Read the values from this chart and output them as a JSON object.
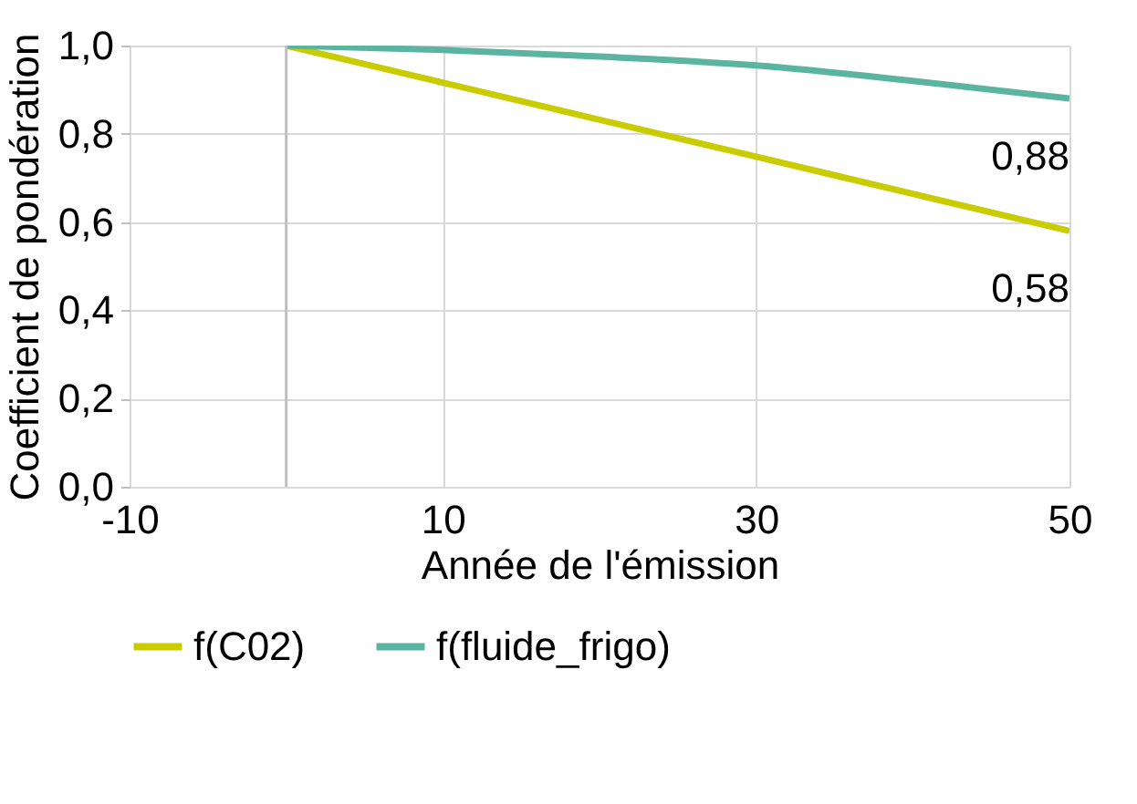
{
  "chart_data": {
    "type": "line",
    "xlabel": "Année de l'émission",
    "ylabel": "Coefficient de pondération",
    "x": [
      0,
      10,
      20,
      30,
      40,
      50
    ],
    "series": [
      {
        "name": "f(C02)",
        "color": "#c8cc00",
        "values": [
          1.0,
          0.916,
          0.832,
          0.748,
          0.664,
          0.58
        ]
      },
      {
        "name": "f(fluide_frigo)",
        "color": "#5ab4a0",
        "values": [
          1.0,
          0.99,
          0.975,
          0.955,
          0.92,
          0.88
        ]
      }
    ],
    "xlim": [
      -10,
      50
    ],
    "xticks": [
      -10,
      10,
      30,
      50
    ],
    "ylim": [
      0,
      1
    ],
    "yticks": [
      {
        "value": 0,
        "label": "0,0"
      },
      {
        "value": 0.2,
        "label": "0,2"
      },
      {
        "value": 0.4,
        "label": "0,4"
      },
      {
        "value": 0.6,
        "label": "0,6"
      },
      {
        "value": 0.8,
        "label": "0,8"
      },
      {
        "value": 1,
        "label": "1,0"
      }
    ],
    "annotations": [
      {
        "text": "0,88",
        "x": 50,
        "y": 0.88
      },
      {
        "text": "0,58",
        "x": 50,
        "y": 0.58
      }
    ],
    "ref_lines": [
      {
        "axis": "x",
        "value": 0,
        "color": "#bfbfbf"
      }
    ],
    "grid": true,
    "legend": "bottom",
    "marker": "none",
    "line_style": "solid"
  }
}
